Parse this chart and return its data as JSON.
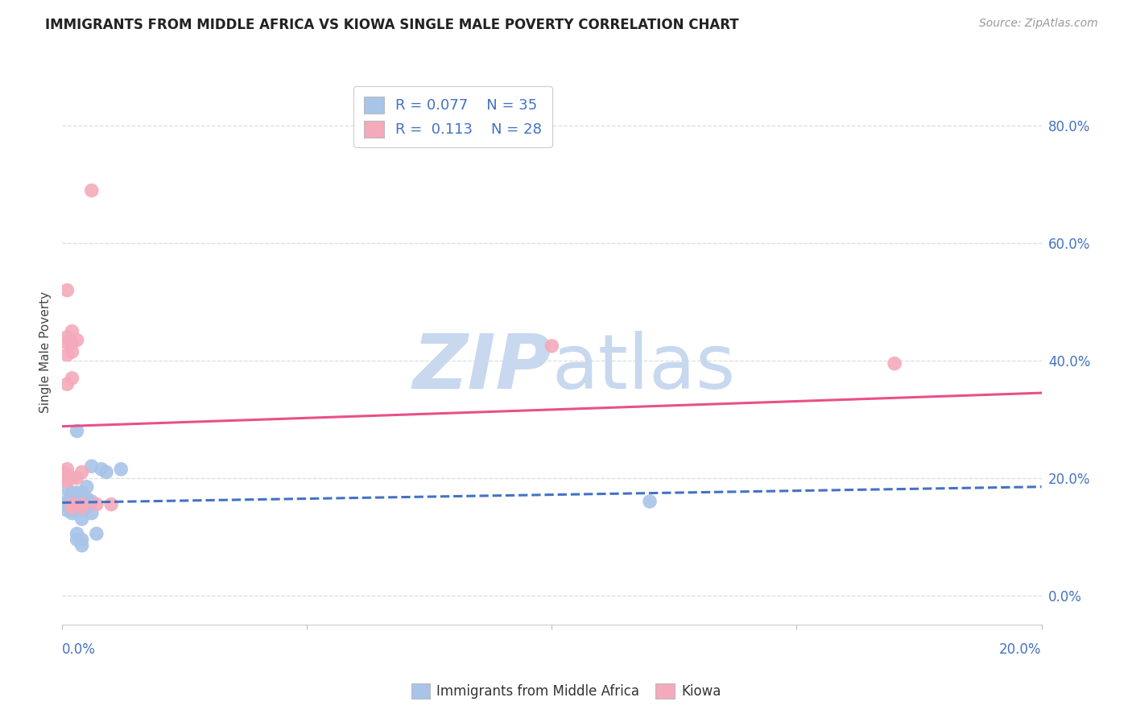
{
  "title": "IMMIGRANTS FROM MIDDLE AFRICA VS KIOWA SINGLE MALE POVERTY CORRELATION CHART",
  "source": "Source: ZipAtlas.com",
  "ylabel": "Single Male Poverty",
  "blue_color": "#a8c4e8",
  "pink_color": "#f4aabb",
  "blue_line_color": "#4472c4",
  "pink_line_color": "#e8508a",
  "scatter_blue": [
    [
      0.0,
      0.155
    ],
    [
      0.001,
      0.16
    ],
    [
      0.001,
      0.155
    ],
    [
      0.001,
      0.145
    ],
    [
      0.001,
      0.18
    ],
    [
      0.001,
      0.2
    ],
    [
      0.002,
      0.175
    ],
    [
      0.002,
      0.155
    ],
    [
      0.002,
      0.165
    ],
    [
      0.002,
      0.15
    ],
    [
      0.002,
      0.145
    ],
    [
      0.002,
      0.14
    ],
    [
      0.003,
      0.28
    ],
    [
      0.003,
      0.175
    ],
    [
      0.003,
      0.155
    ],
    [
      0.003,
      0.145
    ],
    [
      0.003,
      0.105
    ],
    [
      0.003,
      0.095
    ],
    [
      0.004,
      0.175
    ],
    [
      0.004,
      0.16
    ],
    [
      0.004,
      0.145
    ],
    [
      0.004,
      0.13
    ],
    [
      0.004,
      0.095
    ],
    [
      0.004,
      0.085
    ],
    [
      0.005,
      0.185
    ],
    [
      0.005,
      0.165
    ],
    [
      0.005,
      0.15
    ],
    [
      0.006,
      0.22
    ],
    [
      0.006,
      0.16
    ],
    [
      0.006,
      0.14
    ],
    [
      0.007,
      0.105
    ],
    [
      0.008,
      0.215
    ],
    [
      0.009,
      0.21
    ],
    [
      0.012,
      0.215
    ],
    [
      0.12,
      0.16
    ]
  ],
  "scatter_pink": [
    [
      0.0,
      0.21
    ],
    [
      0.0,
      0.2
    ],
    [
      0.001,
      0.52
    ],
    [
      0.001,
      0.44
    ],
    [
      0.001,
      0.43
    ],
    [
      0.001,
      0.41
    ],
    [
      0.001,
      0.36
    ],
    [
      0.001,
      0.215
    ],
    [
      0.001,
      0.205
    ],
    [
      0.001,
      0.2
    ],
    [
      0.001,
      0.195
    ],
    [
      0.002,
      0.45
    ],
    [
      0.002,
      0.43
    ],
    [
      0.002,
      0.415
    ],
    [
      0.002,
      0.37
    ],
    [
      0.002,
      0.2
    ],
    [
      0.002,
      0.155
    ],
    [
      0.002,
      0.15
    ],
    [
      0.003,
      0.435
    ],
    [
      0.003,
      0.2
    ],
    [
      0.004,
      0.21
    ],
    [
      0.004,
      0.155
    ],
    [
      0.004,
      0.15
    ],
    [
      0.006,
      0.69
    ],
    [
      0.007,
      0.155
    ],
    [
      0.01,
      0.155
    ],
    [
      0.1,
      0.425
    ],
    [
      0.17,
      0.395
    ]
  ],
  "blue_trendline": [
    [
      0.0,
      0.158
    ],
    [
      0.2,
      0.185
    ]
  ],
  "pink_trendline": [
    [
      0.0,
      0.288
    ],
    [
      0.2,
      0.345
    ]
  ],
  "xlim": [
    0.0,
    0.2
  ],
  "ylim": [
    -0.05,
    0.88
  ],
  "ytick_vals": [
    0.0,
    0.2,
    0.4,
    0.6,
    0.8
  ],
  "ytick_labels": [
    "0.0%",
    "20.0%",
    "40.0%",
    "60.0%",
    "80.0%"
  ],
  "grid_color": "#dddddd",
  "background_color": "#ffffff",
  "watermark_zip": "ZIP",
  "watermark_atlas": "atlas",
  "watermark_color_zip": "#c8d8ee",
  "watermark_color_atlas": "#c8d8ee",
  "axis_label_color": "#4472c4",
  "title_color": "#222222",
  "source_color": "#999999"
}
